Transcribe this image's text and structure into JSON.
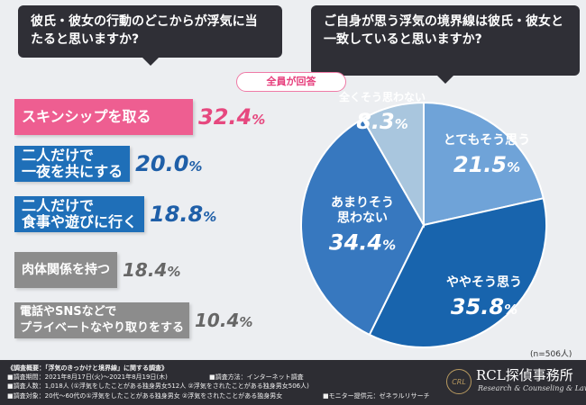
{
  "questions": {
    "left": "彼氏・彼女の行動のどこからが浮気に当たると思いますか?",
    "right": "ご自身が思う浮気の境界線は彼氏・彼女と一致していると思いますか?"
  },
  "all_respondents_label": "全員が回答",
  "sample_note": "(n=506人)",
  "chart_data": [
    {
      "type": "bar",
      "categories": [
        "スキンシップを取る",
        "二人だけで一夜を共にする",
        "二人だけで食事や遊びに行く",
        "肉体関係を持つ",
        "電話やSNSなどでプライベートなやり取りをする"
      ],
      "category_lines": [
        [
          "スキンシップを取る"
        ],
        [
          "二人だけで",
          "一夜を共にする"
        ],
        [
          "二人だけで",
          "食事や遊びに行く"
        ],
        [
          "肉体関係を持つ"
        ],
        [
          "電話やSNSなどで",
          "プライベートなやり取りをする"
        ]
      ],
      "values": [
        32.4,
        20.0,
        18.8,
        18.4,
        10.4
      ],
      "unit": "%",
      "bar_colors": [
        "#ee5e91",
        "#1f6fb8",
        "#1f6fb8",
        "#8c8c8c",
        "#8c8c8c"
      ],
      "pct_colors": [
        "#e6487f",
        "#1f5fa8",
        "#1f5fa8",
        "#666666",
        "#666666"
      ]
    },
    {
      "type": "pie",
      "labels": [
        "とてもそう思う",
        "ややそう思う",
        "あまりそう思わない",
        "全くそう思わない"
      ],
      "label_lines": [
        [
          "とてもそう思う"
        ],
        [
          "ややそう思う"
        ],
        [
          "あまりそう",
          "思わない"
        ],
        [
          "全くそう思わない"
        ]
      ],
      "values": [
        21.5,
        35.8,
        34.4,
        8.3
      ],
      "unit": "%",
      "colors": [
        "#6fa3d8",
        "#1864ad",
        "#3778bf",
        "#a9c6de"
      ]
    }
  ],
  "footer": {
    "title": "《調査概要：「浮気のきっかけと境界線」に関する調査》",
    "period": "■調査期間：2021年8月17日(火)～2021年8月19日(木)",
    "method": "■調査方法：インターネット調査",
    "people": "■調査人数：1,018人 (①浮気をしたことがある独身男女512人 ②浮気をされたことがある独身男女506人)",
    "target": "■調査対象：20代～60代の①浮気をしたことがある独身男女 ②浮気をされたことがある独身男女",
    "monitor": "■モニター提供元：ゼネラルリサーチ",
    "logo_mark": "CRL",
    "firm_name": "RCL探偵事務所",
    "firm_sub": "Research & Counseling & Law"
  }
}
